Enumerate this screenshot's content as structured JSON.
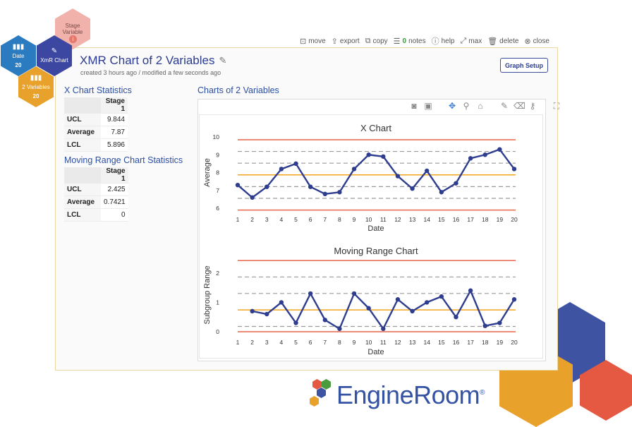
{
  "nav": {
    "stage_variable": "Stage Variable",
    "date": {
      "label": "Date",
      "count": "20"
    },
    "xmr": {
      "label": "XmR Chart"
    },
    "two_vars": {
      "label": "2 Variables",
      "count": "20"
    }
  },
  "toolbar": {
    "move": "move",
    "export": "export",
    "copy": "copy",
    "notes_count": "0",
    "notes": "notes",
    "help": "help",
    "max": "max",
    "delete": "delete",
    "close": "close"
  },
  "header": {
    "title": "XMR Chart of 2 Variables",
    "subtitle": "created 3 hours ago / modified a few seconds ago",
    "graph_setup": "Graph Setup"
  },
  "x_stats": {
    "title": "X Chart Statistics",
    "stage": "Stage 1",
    "rows": [
      {
        "label": "UCL",
        "value": "9.844"
      },
      {
        "label": "Average",
        "value": "7.87"
      },
      {
        "label": "LCL",
        "value": "5.896"
      }
    ]
  },
  "mr_stats": {
    "title": "Moving Range Chart Statistics",
    "stage": "Stage 1",
    "rows": [
      {
        "label": "UCL",
        "value": "2.425"
      },
      {
        "label": "Average",
        "value": "0.7421"
      },
      {
        "label": "LCL",
        "value": "0"
      }
    ]
  },
  "charts_title": "Charts of 2 Variables",
  "colors": {
    "line": "#2f3d8f",
    "limit": "#e8654a",
    "center": "#f2a51d",
    "zone": "#9a9a9a"
  },
  "chart_data": [
    {
      "type": "line",
      "title": "X Chart",
      "xlabel": "Date",
      "ylabel": "Average",
      "x": [
        1,
        2,
        3,
        4,
        5,
        6,
        7,
        8,
        9,
        10,
        11,
        12,
        13,
        14,
        15,
        16,
        17,
        18,
        19,
        20
      ],
      "values": [
        7.3,
        6.6,
        7.2,
        8.2,
        8.5,
        7.2,
        6.8,
        6.9,
        8.2,
        9.0,
        8.9,
        7.8,
        7.1,
        8.1,
        6.9,
        7.4,
        8.8,
        9.0,
        9.3,
        8.2
      ],
      "ylim": [
        6,
        10
      ],
      "yticks": [
        6,
        7,
        8,
        9,
        10
      ],
      "ucl": 9.844,
      "center": 7.87,
      "lcl": 5.896,
      "zones": [
        9.186,
        8.528,
        7.212,
        6.554
      ]
    },
    {
      "type": "line",
      "title": "Moving Range Chart",
      "xlabel": "Date",
      "ylabel": "Subgroup Range",
      "x": [
        2,
        3,
        4,
        5,
        6,
        7,
        8,
        9,
        10,
        11,
        12,
        13,
        14,
        15,
        16,
        17,
        18,
        19,
        20
      ],
      "values": [
        0.7,
        0.6,
        1.0,
        0.3,
        1.3,
        0.4,
        0.1,
        1.3,
        0.8,
        0.1,
        1.1,
        0.7,
        1.0,
        1.2,
        0.5,
        1.4,
        0.2,
        0.3,
        1.1
      ],
      "ylim": [
        0,
        2.5
      ],
      "yticks": [
        0,
        1,
        2
      ],
      "ucl": 2.425,
      "center": 0.7421,
      "lcl": 0,
      "zones": [
        1.864,
        1.303,
        0.181
      ]
    }
  ],
  "xticks": [
    "1",
    "2",
    "3",
    "4",
    "5",
    "6",
    "7",
    "8",
    "9",
    "10",
    "11",
    "12",
    "13",
    "14",
    "15",
    "16",
    "17",
    "18",
    "19",
    "20"
  ],
  "logo": {
    "text": "EngineRoom",
    "mark": "®"
  }
}
